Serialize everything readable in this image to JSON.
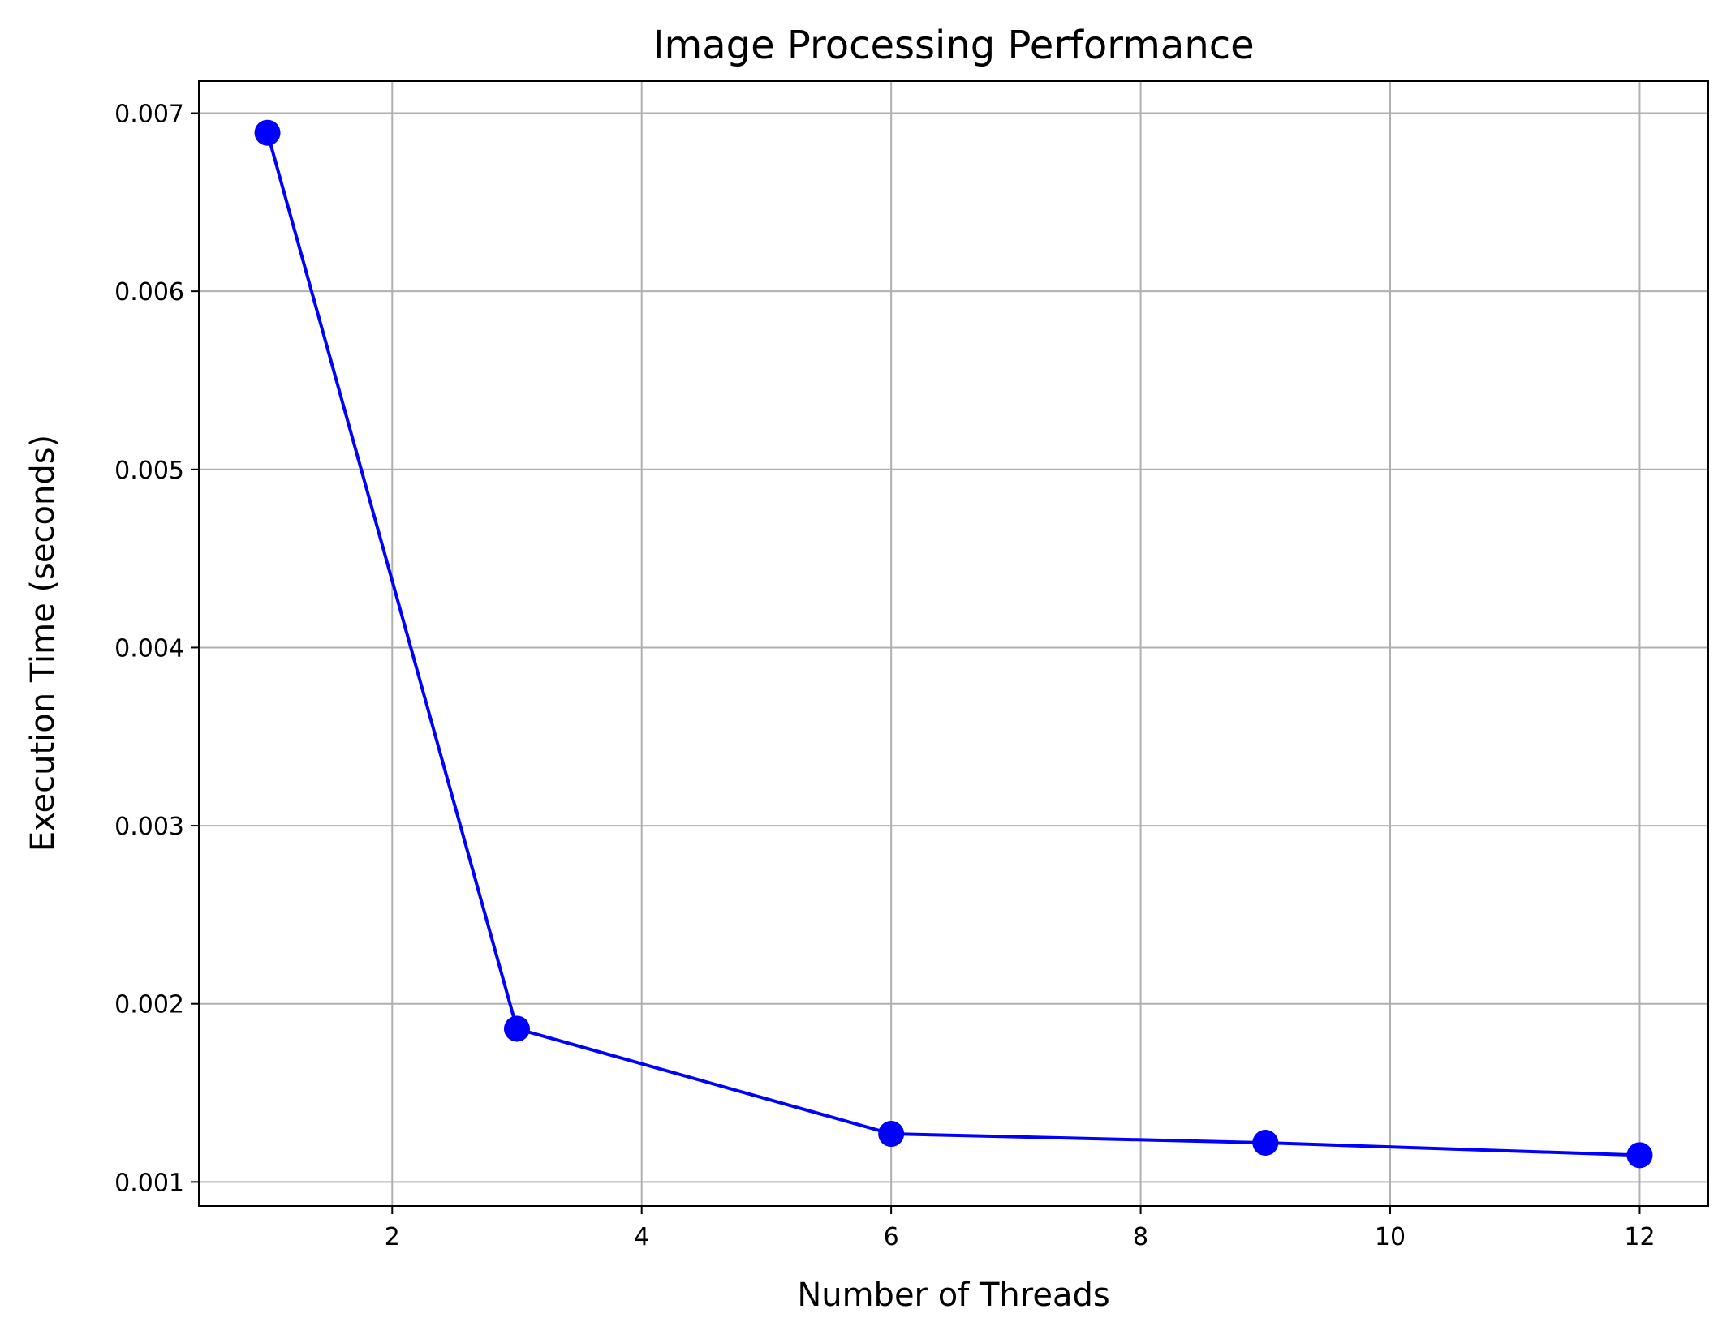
{
  "chart_data": {
    "type": "line",
    "title": "Image Processing Performance",
    "xlabel": "Number of Threads",
    "ylabel": "Execution Time (seconds)",
    "x": [
      1,
      3,
      6,
      9,
      12
    ],
    "series": [
      {
        "values": [
          0.00689,
          0.00186,
          0.00127,
          0.00122,
          0.00115
        ],
        "color": "#0000ff",
        "marker": "circle"
      }
    ],
    "xlim": [
      0.45,
      12.55
    ],
    "ylim": [
      0.000865,
      0.00718
    ],
    "xticks": [
      2,
      4,
      6,
      8,
      10,
      12
    ],
    "xtick_labels": [
      "2",
      "4",
      "6",
      "8",
      "10",
      "12"
    ],
    "yticks": [
      0.001,
      0.002,
      0.003,
      0.004,
      0.005,
      0.006,
      0.007
    ],
    "ytick_labels": [
      "0.001",
      "0.002",
      "0.003",
      "0.004",
      "0.005",
      "0.006",
      "0.007"
    ],
    "grid": true,
    "grid_color": "#b0b0b0",
    "legend": false
  }
}
